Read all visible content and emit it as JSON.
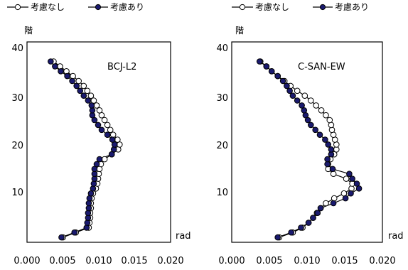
{
  "chart_data": [
    {
      "type": "line",
      "title": "BCJ-L2",
      "ylabel": "階",
      "xlabel": "rad",
      "xlim": [
        0,
        0.02
      ],
      "ylim": [
        0,
        41
      ],
      "xticks": [
        "0.000",
        "0.005",
        "0.010",
        "0.015",
        "0.020"
      ],
      "yticks": [
        "10",
        "20",
        "30",
        "40"
      ],
      "legend_position": "top",
      "grid": false,
      "series": [
        {
          "name": "考慮なし",
          "marker": "open-circle",
          "color": "#000000",
          "fill": "#ffffff",
          "points": [
            [
              0.005,
              1
            ],
            [
              0.0068,
              2
            ],
            [
              0.0086,
              3
            ],
            [
              0.0087,
              4
            ],
            [
              0.0088,
              5
            ],
            [
              0.0088,
              6
            ],
            [
              0.0089,
              7
            ],
            [
              0.0089,
              8
            ],
            [
              0.009,
              9
            ],
            [
              0.0092,
              10
            ],
            [
              0.0096,
              11
            ],
            [
              0.0098,
              12
            ],
            [
              0.0099,
              13
            ],
            [
              0.01,
              14
            ],
            [
              0.0101,
              15
            ],
            [
              0.0103,
              16
            ],
            [
              0.0108,
              17
            ],
            [
              0.0118,
              18
            ],
            [
              0.0127,
              19
            ],
            [
              0.0129,
              20
            ],
            [
              0.0126,
              21
            ],
            [
              0.012,
              22
            ],
            [
              0.0116,
              23
            ],
            [
              0.0112,
              24
            ],
            [
              0.0108,
              25
            ],
            [
              0.0104,
              26
            ],
            [
              0.0101,
              27
            ],
            [
              0.0097,
              28
            ],
            [
              0.0093,
              29
            ],
            [
              0.0089,
              30
            ],
            [
              0.0084,
              31
            ],
            [
              0.0079,
              32
            ],
            [
              0.0072,
              33
            ],
            [
              0.0064,
              34
            ],
            [
              0.0055,
              35
            ],
            [
              0.0046,
              36
            ],
            [
              0.0037,
              37
            ]
          ]
        },
        {
          "name": "考慮あり",
          "marker": "filled-circle",
          "color": "#000000",
          "fill": "#1a1a6e",
          "points": [
            [
              0.0048,
              1
            ],
            [
              0.0066,
              2
            ],
            [
              0.0083,
              3
            ],
            [
              0.0084,
              4
            ],
            [
              0.0085,
              5
            ],
            [
              0.0085,
              6
            ],
            [
              0.0086,
              7
            ],
            [
              0.0086,
              8
            ],
            [
              0.0087,
              9
            ],
            [
              0.0089,
              10
            ],
            [
              0.0092,
              11
            ],
            [
              0.0093,
              12
            ],
            [
              0.0094,
              13
            ],
            [
              0.0094,
              14
            ],
            [
              0.0094,
              15
            ],
            [
              0.0097,
              16
            ],
            [
              0.0101,
              17
            ],
            [
              0.0118,
              18
            ],
            [
              0.0121,
              19
            ],
            [
              0.0122,
              20
            ],
            [
              0.0119,
              21
            ],
            [
              0.0112,
              22
            ],
            [
              0.0104,
              23
            ],
            [
              0.0099,
              24
            ],
            [
              0.0094,
              25
            ],
            [
              0.0091,
              26
            ],
            [
              0.0091,
              27
            ],
            [
              0.009,
              28
            ],
            [
              0.0085,
              29
            ],
            [
              0.0079,
              30
            ],
            [
              0.0074,
              31
            ],
            [
              0.0069,
              32
            ],
            [
              0.0063,
              33
            ],
            [
              0.0056,
              34
            ],
            [
              0.0047,
              35
            ],
            [
              0.0039,
              36
            ],
            [
              0.0033,
              37
            ]
          ]
        }
      ]
    },
    {
      "type": "line",
      "title": "C-SAN-EW",
      "ylabel": "階",
      "xlabel": "rad",
      "xlim": [
        0,
        0.02
      ],
      "ylim": [
        0,
        41
      ],
      "xticks": [
        "0.000",
        "0.005",
        "0.010",
        "0.015",
        "0.020"
      ],
      "yticks": [
        "10",
        "20",
        "30",
        "40"
      ],
      "legend_position": "top",
      "grid": false,
      "series": [
        {
          "name": "考慮なし",
          "marker": "open-circle",
          "color": "#000000",
          "fill": "#ffffff",
          "points": [
            [
              0.0063,
              1
            ],
            [
              0.0081,
              2
            ],
            [
              0.0094,
              3
            ],
            [
              0.0102,
              4
            ],
            [
              0.0108,
              5
            ],
            [
              0.0113,
              6
            ],
            [
              0.0118,
              7
            ],
            [
              0.0125,
              8
            ],
            [
              0.0136,
              9
            ],
            [
              0.0149,
              10
            ],
            [
              0.0159,
              11
            ],
            [
              0.016,
              12
            ],
            [
              0.0152,
              13
            ],
            [
              0.0135,
              14
            ],
            [
              0.0128,
              15
            ],
            [
              0.0128,
              16
            ],
            [
              0.0131,
              17
            ],
            [
              0.0136,
              18
            ],
            [
              0.0139,
              19
            ],
            [
              0.0139,
              20
            ],
            [
              0.0137,
              21
            ],
            [
              0.0135,
              22
            ],
            [
              0.0133,
              23
            ],
            [
              0.0132,
              24
            ],
            [
              0.013,
              25
            ],
            [
              0.0125,
              26
            ],
            [
              0.0119,
              27
            ],
            [
              0.0112,
              28
            ],
            [
              0.0105,
              29
            ],
            [
              0.0097,
              30
            ],
            [
              0.0087,
              31
            ],
            [
              0.0078,
              32
            ],
            [
              0.007,
              33
            ],
            [
              0.0061,
              34
            ],
            [
              0.0053,
              35
            ],
            [
              0.0046,
              36
            ],
            [
              0.0038,
              37
            ]
          ]
        },
        {
          "name": "考慮あり",
          "marker": "filled-circle",
          "color": "#000000",
          "fill": "#1a1a6e",
          "points": [
            [
              0.0061,
              1
            ],
            [
              0.0079,
              2
            ],
            [
              0.0092,
              3
            ],
            [
              0.0102,
              4
            ],
            [
              0.0108,
              5
            ],
            [
              0.0114,
              6
            ],
            [
              0.0118,
              7
            ],
            [
              0.0135,
              8
            ],
            [
              0.0151,
              9
            ],
            [
              0.0158,
              10
            ],
            [
              0.0169,
              11
            ],
            [
              0.0166,
              12
            ],
            [
              0.016,
              13
            ],
            [
              0.0156,
              14
            ],
            [
              0.0134,
              15
            ],
            [
              0.0127,
              16
            ],
            [
              0.0127,
              17
            ],
            [
              0.0132,
              18
            ],
            [
              0.0132,
              19
            ],
            [
              0.0128,
              20
            ],
            [
              0.0124,
              21
            ],
            [
              0.0117,
              22
            ],
            [
              0.0111,
              23
            ],
            [
              0.0105,
              24
            ],
            [
              0.0101,
              25
            ],
            [
              0.0098,
              26
            ],
            [
              0.0096,
              27
            ],
            [
              0.0093,
              28
            ],
            [
              0.0087,
              29
            ],
            [
              0.0081,
              30
            ],
            [
              0.0077,
              31
            ],
            [
              0.0073,
              32
            ],
            [
              0.0068,
              33
            ],
            [
              0.0061,
              34
            ],
            [
              0.0053,
              35
            ],
            [
              0.0046,
              36
            ],
            [
              0.0037,
              37
            ]
          ]
        }
      ]
    }
  ]
}
